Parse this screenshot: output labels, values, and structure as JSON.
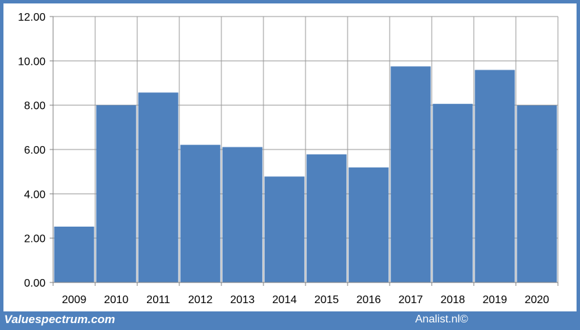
{
  "footer": {
    "source_left": "Valuespectrum.com",
    "source_right": "Analist.nl©"
  },
  "colors": {
    "bar": "#4f81bd",
    "frame": "#4f81bd",
    "grid": "#999999",
    "background": "#ffffff"
  },
  "chart_data": {
    "type": "bar",
    "title": "",
    "xlabel": "",
    "ylabel": "",
    "categories": [
      "2009",
      "2010",
      "2011",
      "2012",
      "2013",
      "2014",
      "2015",
      "2016",
      "2017",
      "2018",
      "2019",
      "2020"
    ],
    "values": [
      2.52,
      8.0,
      8.57,
      6.21,
      6.11,
      4.78,
      5.78,
      5.19,
      9.75,
      8.06,
      9.59,
      7.99
    ],
    "ylim": [
      0,
      12
    ],
    "yticks": [
      "0.00",
      "2.00",
      "4.00",
      "6.00",
      "8.00",
      "10.00",
      "12.00"
    ],
    "grid": "both",
    "legend": "none"
  }
}
